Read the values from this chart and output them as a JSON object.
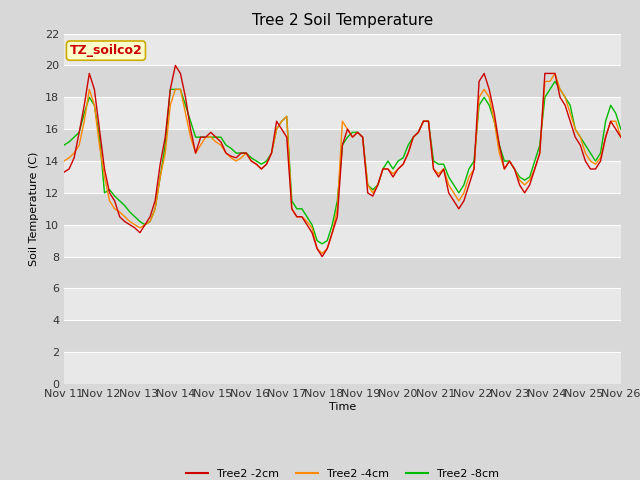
{
  "title": "Tree 2 Soil Temperature",
  "xlabel": "Time",
  "ylabel": "Soil Temperature (C)",
  "annotation": "TZ_soilco2",
  "annotation_color": "#cc0000",
  "annotation_bg": "#ffffcc",
  "annotation_border": "#ccaa00",
  "ylim": [
    0,
    22
  ],
  "yticks": [
    0,
    2,
    4,
    6,
    8,
    10,
    12,
    14,
    16,
    18,
    20,
    22
  ],
  "x_labels": [
    "Nov 11",
    "Nov 12",
    "Nov 13",
    "Nov 14",
    "Nov 15",
    "Nov 16",
    "Nov 17",
    "Nov 18",
    "Nov 19",
    "Nov 20",
    "Nov 21",
    "Nov 22",
    "Nov 23",
    "Nov 24",
    "Nov 25",
    "Nov 26"
  ],
  "fig_bg": "#d8d8d8",
  "plot_bg_light": "#e8e8e8",
  "plot_bg_dark": "#d8d8d8",
  "grid_color": "#ffffff",
  "line_colors": [
    "#cc0000",
    "#ff8800",
    "#00bb00"
  ],
  "line_labels": [
    "Tree2 -2cm",
    "Tree2 -4cm",
    "Tree2 -8cm"
  ],
  "line_width": 1.0,
  "tree2_2cm": [
    13.3,
    13.5,
    14.2,
    15.8,
    17.5,
    19.5,
    18.5,
    16.0,
    13.5,
    12.0,
    11.5,
    10.5,
    10.2,
    10.0,
    9.8,
    9.5,
    10.0,
    10.5,
    11.5,
    13.8,
    15.5,
    18.5,
    20.0,
    19.5,
    18.0,
    16.0,
    14.5,
    15.5,
    15.5,
    15.8,
    15.5,
    15.2,
    14.5,
    14.3,
    14.2,
    14.5,
    14.5,
    14.0,
    13.8,
    13.5,
    13.8,
    14.5,
    16.5,
    16.0,
    15.5,
    11.0,
    10.5,
    10.5,
    10.0,
    9.5,
    8.5,
    8.0,
    8.5,
    9.5,
    10.5,
    15.0,
    16.0,
    15.5,
    15.8,
    15.5,
    12.0,
    11.8,
    12.5,
    13.5,
    13.5,
    13.0,
    13.5,
    13.8,
    14.5,
    15.5,
    15.8,
    16.5,
    16.5,
    13.5,
    13.0,
    13.5,
    12.0,
    11.5,
    11.0,
    11.5,
    12.5,
    13.5,
    19.0,
    19.5,
    18.5,
    17.0,
    15.0,
    13.5,
    14.0,
    13.5,
    12.5,
    12.0,
    12.5,
    13.5,
    14.5,
    19.5,
    19.5,
    19.5,
    18.0,
    17.5,
    16.5,
    15.5,
    15.0,
    14.0,
    13.5,
    13.5,
    14.0,
    15.5,
    16.5,
    16.0,
    15.5
  ],
  "tree2_4cm": [
    14.0,
    14.2,
    14.5,
    15.0,
    16.5,
    18.5,
    17.5,
    15.0,
    13.0,
    11.5,
    11.0,
    10.8,
    10.5,
    10.2,
    10.0,
    9.8,
    10.0,
    10.2,
    11.0,
    13.0,
    14.5,
    17.5,
    18.5,
    18.5,
    17.0,
    15.5,
    14.5,
    15.0,
    15.5,
    15.5,
    15.2,
    15.0,
    14.5,
    14.2,
    14.0,
    14.2,
    14.5,
    14.0,
    13.8,
    13.5,
    13.8,
    14.5,
    16.0,
    16.5,
    16.8,
    11.0,
    10.5,
    10.5,
    10.2,
    9.8,
    8.5,
    8.2,
    8.5,
    9.5,
    11.0,
    16.5,
    16.0,
    15.5,
    15.8,
    15.5,
    12.5,
    12.0,
    12.5,
    13.5,
    13.5,
    13.2,
    13.5,
    13.8,
    14.5,
    15.5,
    15.8,
    16.5,
    16.5,
    13.5,
    13.2,
    13.5,
    12.5,
    12.0,
    11.5,
    12.0,
    13.0,
    13.5,
    18.0,
    18.5,
    18.0,
    16.5,
    14.5,
    13.5,
    14.0,
    13.5,
    12.8,
    12.5,
    12.8,
    13.5,
    14.5,
    19.0,
    19.0,
    19.5,
    18.5,
    18.0,
    17.0,
    16.0,
    15.5,
    14.5,
    14.0,
    13.8,
    14.2,
    15.5,
    16.5,
    16.5,
    15.5
  ],
  "tree2_8cm": [
    15.0,
    15.2,
    15.5,
    15.8,
    17.0,
    18.0,
    17.5,
    15.5,
    12.0,
    12.2,
    11.8,
    11.5,
    11.2,
    10.8,
    10.5,
    10.2,
    10.0,
    10.2,
    11.0,
    13.0,
    15.0,
    18.5,
    18.5,
    18.5,
    17.5,
    16.5,
    15.5,
    15.5,
    15.5,
    15.5,
    15.5,
    15.5,
    15.0,
    14.8,
    14.5,
    14.5,
    14.5,
    14.2,
    14.0,
    13.8,
    14.0,
    14.5,
    16.0,
    16.5,
    16.8,
    11.5,
    11.0,
    11.0,
    10.5,
    10.0,
    9.0,
    8.8,
    9.0,
    10.0,
    11.5,
    15.0,
    15.5,
    15.8,
    15.8,
    15.5,
    12.5,
    12.2,
    12.5,
    13.5,
    14.0,
    13.5,
    14.0,
    14.2,
    15.0,
    15.5,
    15.8,
    16.5,
    16.5,
    14.0,
    13.8,
    13.8,
    13.0,
    12.5,
    12.0,
    12.5,
    13.5,
    14.0,
    17.5,
    18.0,
    17.5,
    16.5,
    15.0,
    14.0,
    14.0,
    13.5,
    13.0,
    12.8,
    13.0,
    14.0,
    15.0,
    18.0,
    18.5,
    19.0,
    18.5,
    18.0,
    17.5,
    16.0,
    15.5,
    15.0,
    14.5,
    14.0,
    14.5,
    16.5,
    17.5,
    17.0,
    16.0
  ]
}
